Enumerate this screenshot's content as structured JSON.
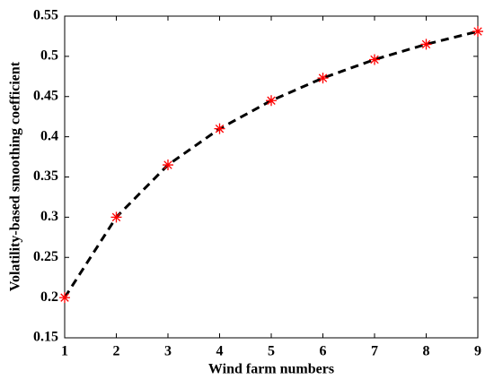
{
  "chart_data": {
    "type": "line",
    "x_label": "Wind farm numbers",
    "y_label": "Volatility-based smoothing coefficient",
    "x": [
      1,
      2,
      3,
      4,
      5,
      6,
      7,
      8,
      9
    ],
    "series": [
      {
        "color": "#000000",
        "marker_color": "#ff0000",
        "line_style": "dashed",
        "marker": "asterisk",
        "values": [
          0.2,
          0.3,
          0.365,
          0.41,
          0.445,
          0.473,
          0.496,
          0.515,
          0.531
        ]
      }
    ],
    "xlim": [
      1,
      9
    ],
    "xticks": [
      1,
      2,
      3,
      4,
      5,
      6,
      7,
      8,
      9
    ],
    "ylim": [
      0.15,
      0.55
    ],
    "yticks": [
      0.15,
      0.2,
      0.25,
      0.3,
      0.35,
      0.4,
      0.45,
      0.5,
      0.55
    ],
    "grid": false
  }
}
